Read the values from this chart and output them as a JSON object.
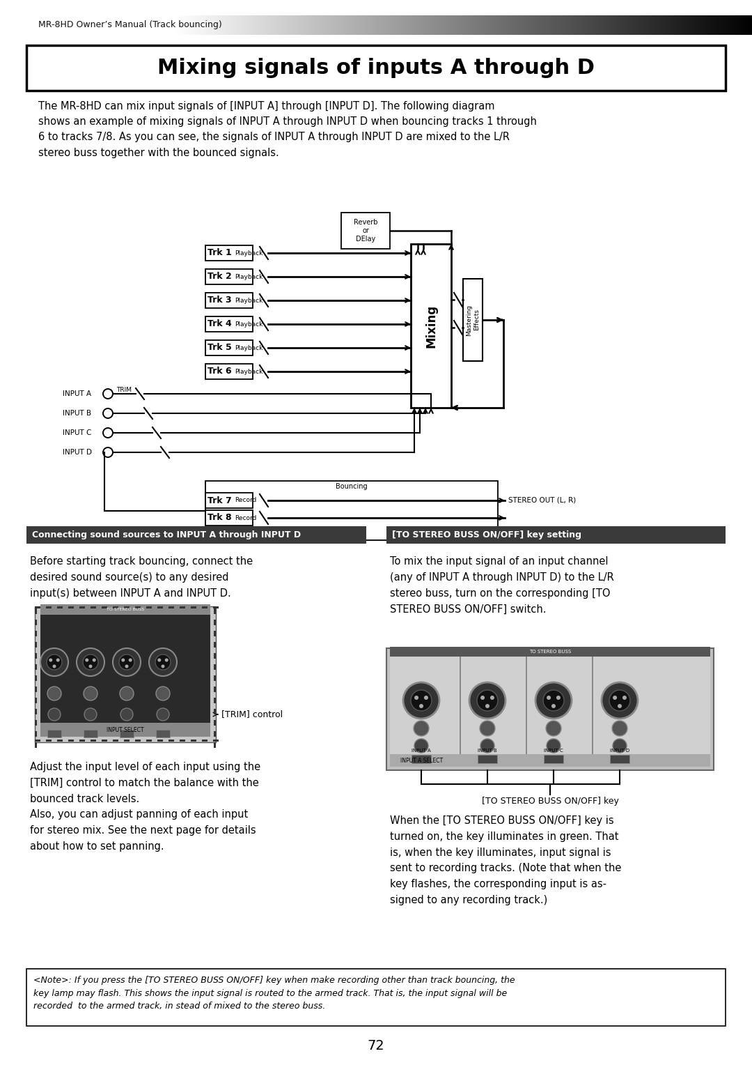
{
  "header_text": "MR-8HD Owner’s Manual (Track bouncing)",
  "main_title": "Mixing signals of inputs A through D",
  "intro_text": "The MR-8HD can mix input signals of [INPUT A] through [INPUT D]. The following diagram\nshows an example of mixing signals of INPUT A through INPUT D when bouncing tracks 1 through\n6 to tracks 7/8. As you can see, the signals of INPUT A through INPUT D are mixed to the L/R\nstereo buss together with the bounced signals.",
  "left_box_title": "Connecting sound sources to INPUT A through INPUT D",
  "right_box_title": "[TO STEREO BUSS ON/OFF] key setting",
  "left_para1": "Before starting track bouncing, connect the\ndesired sound source(s) to any desired\ninput(s) between INPUT A and INPUT D.",
  "trim_label": "[TRIM] control",
  "left_para2": "Adjust the input level of each input using the\n[TRIM] control to match the balance with the\nbounced track levels.\nAlso, you can adjust panning of each input\nfor stereo mix. See the next page for details\nabout how to set panning.",
  "right_para1": "To mix the input signal of an input channel\n(any of INPUT A through INPUT D) to the L/R\nstereo buss, turn on the corresponding [TO\nSTEREO BUSS ON/OFF] switch.",
  "stereo_label": "[TO STEREO BUSS ON/OFF] key",
  "right_para2": "When the [TO STEREO BUSS ON/OFF] key is\nturned on, the key illuminates in green. That\nis, when the key illuminates, input signal is\nsent to recording tracks. (Note that when the\nkey flashes, the corresponding input is as-\nsigned to any recording track.)",
  "note_text": "<Note>: If you press the [TO STEREO BUSS ON/OFF] key when make recording other than track bouncing, the\nkey lamp may flash. This shows the input signal is routed to the armed track. That is, the input signal will be\nrecorded  to the armed track, in stead of mixed to the stereo buss.",
  "page_number": "72",
  "trk16_labels": [
    "Trk 1",
    "Trk 2",
    "Trk 3",
    "Trk 4",
    "Trk 5",
    "Trk 6"
  ],
  "trk78_labels": [
    "Trk 7",
    "Trk 8"
  ],
  "input_labels": [
    "INPUT A",
    "INPUT B",
    "INPUT C",
    "INPUT D"
  ],
  "reverb_text": "Reverb\nor\nDElay",
  "mixing_text": "Mixing",
  "mastering_text": "Mastering\nEffects",
  "bouncing_text": "Bouncing",
  "stereo_out_text": "STEREO OUT (L, R)",
  "trim_text": "TRIM",
  "playback_text": "Playback",
  "record_text": "Record"
}
